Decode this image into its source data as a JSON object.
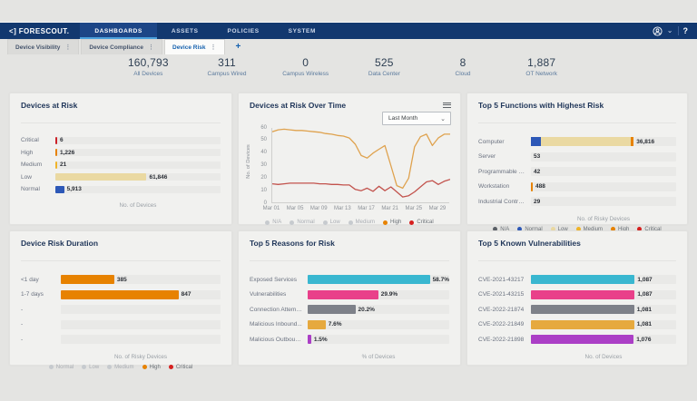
{
  "nav": {
    "logo": "<] FORESCOUT.",
    "items": [
      {
        "label": "DASHBOARDS",
        "active": true
      },
      {
        "label": "ASSETS"
      },
      {
        "label": "POLICIES"
      },
      {
        "label": "SYSTEM"
      }
    ],
    "help_label": "?"
  },
  "tabs": {
    "items": [
      {
        "label": "Device Visibility"
      },
      {
        "label": "Device Compliance"
      },
      {
        "label": "Device Risk",
        "active": true
      }
    ],
    "add_label": "+"
  },
  "stats": [
    {
      "value": "160,793",
      "label": "All Devices"
    },
    {
      "value": "311",
      "label": "Campus Wired"
    },
    {
      "value": "0",
      "label": "Campus Wireless"
    },
    {
      "value": "525",
      "label": "Data Center"
    },
    {
      "value": "8",
      "label": "Cloud"
    },
    {
      "value": "1,887",
      "label": "OT Network"
    }
  ],
  "palette": {
    "critical": "#cb2128",
    "high": "#e78200",
    "medium": "#f0b429",
    "low": "#ead9a2",
    "normal": "#2d58b7",
    "na": "#5b6067",
    "cyan": "#39b7d0",
    "pink": "#e9408a",
    "gray": "#7e8189",
    "amber": "#e6a93e",
    "purple": "#ab3fc6",
    "muted_dot": "#c6cace"
  },
  "charts": {
    "devices_at_risk": {
      "type": "bar",
      "title": "Devices at Risk",
      "xlabel": "No. of Devices",
      "label_col": 38,
      "axis_max": 112000,
      "rows": [
        {
          "label": "Critical",
          "value": 6,
          "value_label": "6",
          "color": "#cb2128"
        },
        {
          "label": "High",
          "value": 1226,
          "value_label": "1,226",
          "color": "#e78200"
        },
        {
          "label": "Medium",
          "value": 21,
          "value_label": "21",
          "color": "#f0b429"
        },
        {
          "label": "Low",
          "value": 61846,
          "value_label": "61,846",
          "color": "#ead9a2"
        },
        {
          "label": "Normal",
          "value": 5913,
          "value_label": "5,913",
          "color": "#2d58b7"
        }
      ]
    },
    "over_time": {
      "type": "line",
      "title": "Devices at Risk Over Time",
      "dropdown": "Last Month",
      "ylabel": "No. of Devices",
      "ylim": [
        0,
        60
      ],
      "yticks": [
        0,
        10,
        20,
        30,
        40,
        50,
        60
      ],
      "xticks": [
        {
          "day": 1,
          "label": "Mar 01"
        },
        {
          "day": 5,
          "label": "Mar 05"
        },
        {
          "day": 9,
          "label": "Mar 09"
        },
        {
          "day": 13,
          "label": "Mar 13"
        },
        {
          "day": 17,
          "label": "Mar 17"
        },
        {
          "day": 21,
          "label": "Mar 21"
        },
        {
          "day": 25,
          "label": "Mar 25"
        },
        {
          "day": 29,
          "label": "Mar 29"
        }
      ],
      "series": [
        {
          "name": "High",
          "color": "#dfa24e",
          "values": [
            57,
            58.5,
            59,
            58.5,
            58,
            58,
            57.5,
            57,
            56.5,
            55.5,
            55,
            54,
            53.5,
            52,
            47,
            38,
            36,
            40,
            43,
            46,
            30,
            14,
            12,
            20,
            45,
            53,
            55,
            46,
            52,
            55,
            55
          ]
        },
        {
          "name": "Critical",
          "color": "#c2524c",
          "values": [
            15.5,
            15,
            15.5,
            16,
            16,
            16,
            16,
            16,
            15.5,
            15.5,
            15,
            15,
            14.5,
            14.5,
            11,
            10,
            12,
            9.5,
            13.5,
            10,
            13,
            9,
            5,
            6,
            9,
            13,
            17,
            18,
            15,
            17.5,
            19
          ]
        }
      ],
      "legend": [
        {
          "label": "N/A",
          "muted": true
        },
        {
          "label": "Normal",
          "muted": true
        },
        {
          "label": "Low",
          "muted": true
        },
        {
          "label": "Medium",
          "muted": true
        },
        {
          "label": "High",
          "color": "#e78200"
        },
        {
          "label": "Critical",
          "color": "#d6201f"
        }
      ]
    },
    "top_functions": {
      "type": "bar",
      "title": "Top 5 Functions with Highest Risk",
      "xlabel": "No. of Risky Devices",
      "label_col": 58,
      "axis_max": 52000,
      "rows": [
        {
          "label": "Computer",
          "value": 36816,
          "value_label": "36,816",
          "segments": [
            {
              "color": "#2d58b7",
              "pct": 10
            },
            {
              "color": "#ead9a2",
              "pct": 87
            },
            {
              "color": "#e78200",
              "pct": 3
            }
          ]
        },
        {
          "label": "Server",
          "value": 53,
          "value_label": "53",
          "color": null
        },
        {
          "label": "Programmable Logi...",
          "value": 42,
          "value_label": "42",
          "color": null
        },
        {
          "label": "Workstation",
          "value": 488,
          "value_label": "488",
          "color": "#e78200"
        },
        {
          "label": "Industrial Contro...",
          "value": 29,
          "value_label": "29",
          "color": null
        }
      ],
      "legend": [
        {
          "label": "N/A",
          "color": "#5b6067"
        },
        {
          "label": "Normal",
          "color": "#2d58b7"
        },
        {
          "label": "Low",
          "color": "#ead9a2"
        },
        {
          "label": "Medium",
          "color": "#f0b429"
        },
        {
          "label": "High",
          "color": "#e78200"
        },
        {
          "label": "Critical",
          "color": "#d6201f"
        }
      ]
    },
    "risk_duration": {
      "type": "bar",
      "title": "Device Risk Duration",
      "xlabel": "No. of Risky Devices",
      "label_col": 44,
      "axis_max": 1150,
      "rows": [
        {
          "label": "<1 day",
          "value": 385,
          "value_label": "385",
          "color": "#e78200"
        },
        {
          "label": "1-7 days",
          "value": 847,
          "value_label": "847",
          "color": "#e78200"
        },
        {
          "label": "-",
          "value": null
        },
        {
          "label": "-",
          "value": null
        },
        {
          "label": "-",
          "value": null
        }
      ],
      "legend": [
        {
          "label": "Normal",
          "muted": true
        },
        {
          "label": "Low",
          "muted": true
        },
        {
          "label": "Medium",
          "muted": true
        },
        {
          "label": "High",
          "color": "#e78200"
        },
        {
          "label": "Critical",
          "color": "#d6201f"
        }
      ]
    },
    "top_reasons": {
      "type": "bar",
      "title": "Top 5 Reasons for Risk",
      "xlabel": "% of Devices",
      "label_col": 64,
      "axis_max": 60,
      "rows": [
        {
          "label": "Exposed Services",
          "value": 58.7,
          "value_label": "58.7%",
          "color": "#39b7d0"
        },
        {
          "label": "Vulnerabilities",
          "value": 29.9,
          "value_label": "29.9%",
          "color": "#e9408a"
        },
        {
          "label": "Connection Attemp...",
          "value": 20.2,
          "value_label": "20.2%",
          "color": "#7e8189"
        },
        {
          "label": "Malicious Inbound...",
          "value": 7.6,
          "value_label": "7.6%",
          "color": "#e6a93e"
        },
        {
          "label": "Malicious Outboun...",
          "value": 1.5,
          "value_label": "1.5%",
          "color": "#ab3fc6"
        }
      ]
    },
    "top_vulns": {
      "type": "bar",
      "title": "Top 5 Known Vulnerabilities",
      "xlabel": "No. of Devices",
      "label_col": 58,
      "axis_max": 1520,
      "rows": [
        {
          "label": "CVE-2021-43217",
          "value": 1087,
          "value_label": "1,087",
          "color": "#39b7d0"
        },
        {
          "label": "CVE-2021-43215",
          "value": 1087,
          "value_label": "1,087",
          "color": "#e9408a"
        },
        {
          "label": "CVE-2022-21874",
          "value": 1081,
          "value_label": "1,081",
          "color": "#7e8189"
        },
        {
          "label": "CVE-2022-21849",
          "value": 1081,
          "value_label": "1,081",
          "color": "#e6a93e"
        },
        {
          "label": "CVE-2022-21898",
          "value": 1076,
          "value_label": "1,076",
          "color": "#ab3fc6"
        }
      ]
    }
  }
}
